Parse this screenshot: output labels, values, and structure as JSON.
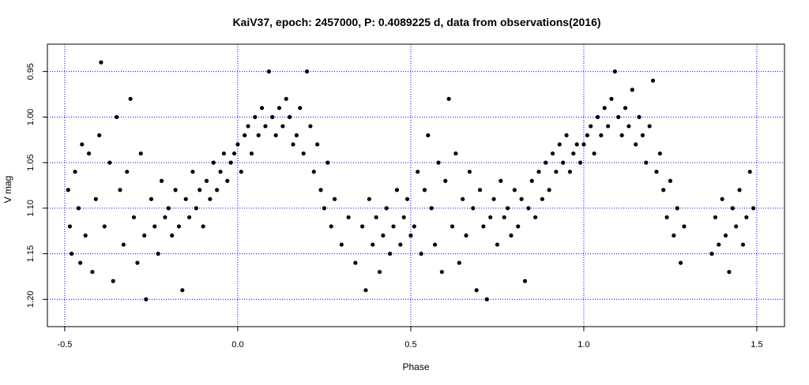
{
  "chart_data": {
    "type": "scatter",
    "title": "KaiV37, epoch: 2457000, P: 0.4089225 d, data from observations(2016)",
    "xlabel": "Phase",
    "ylabel": "V mag",
    "xlim": [
      -0.55,
      1.58
    ],
    "ylim": [
      1.23,
      0.92
    ],
    "y_axis_inverted": true,
    "x_ticks": [
      "-0.5",
      "0.0",
      "0.5",
      "1.0",
      "1.5"
    ],
    "y_ticks": [
      "0.95",
      "1.00",
      "1.05",
      "1.10",
      "1.15",
      "1.20"
    ],
    "grid": "dotted blue at tick positions",
    "point_color": "#000000",
    "grid_color": "#0000ff",
    "phase_repeat_note_shown": false,
    "points": [
      [
        -0.49,
        1.08
      ],
      [
        -0.485,
        1.12
      ],
      [
        -0.48,
        1.15
      ],
      [
        -0.47,
        1.06
      ],
      [
        -0.46,
        1.1
      ],
      [
        -0.455,
        1.16
      ],
      [
        -0.45,
        1.03
      ],
      [
        -0.44,
        1.13
      ],
      [
        -0.43,
        1.04
      ],
      [
        -0.42,
        1.17
      ],
      [
        -0.41,
        1.09
      ],
      [
        -0.4,
        1.02
      ],
      [
        -0.395,
        0.94
      ],
      [
        -0.385,
        1.12
      ],
      [
        -0.37,
        1.05
      ],
      [
        -0.36,
        1.18
      ],
      [
        -0.35,
        1.0
      ],
      [
        -0.34,
        1.08
      ],
      [
        -0.33,
        1.14
      ],
      [
        -0.32,
        1.06
      ],
      [
        -0.31,
        0.98
      ],
      [
        -0.3,
        1.11
      ],
      [
        -0.29,
        1.16
      ],
      [
        -0.28,
        1.04
      ],
      [
        -0.27,
        1.13
      ],
      [
        -0.265,
        1.2
      ],
      [
        -0.25,
        1.09
      ],
      [
        -0.24,
        1.12
      ],
      [
        -0.23,
        1.15
      ],
      [
        -0.22,
        1.07
      ],
      [
        -0.21,
        1.11
      ],
      [
        -0.2,
        1.1
      ],
      [
        -0.19,
        1.13
      ],
      [
        -0.18,
        1.08
      ],
      [
        -0.17,
        1.12
      ],
      [
        -0.16,
        1.19
      ],
      [
        -0.15,
        1.09
      ],
      [
        -0.14,
        1.11
      ],
      [
        -0.13,
        1.06
      ],
      [
        -0.12,
        1.1
      ],
      [
        -0.11,
        1.08
      ],
      [
        -0.1,
        1.12
      ],
      [
        -0.09,
        1.07
      ],
      [
        -0.08,
        1.09
      ],
      [
        -0.07,
        1.05
      ],
      [
        -0.06,
        1.08
      ],
      [
        -0.05,
        1.06
      ],
      [
        -0.04,
        1.04
      ],
      [
        -0.03,
        1.07
      ],
      [
        -0.02,
        1.05
      ],
      [
        -0.01,
        1.04
      ],
      [
        0.0,
        1.03
      ],
      [
        0.01,
        1.06
      ],
      [
        0.02,
        1.02
      ],
      [
        0.03,
        1.01
      ],
      [
        0.04,
        1.04
      ],
      [
        0.05,
        1.0
      ],
      [
        0.06,
        1.02
      ],
      [
        0.07,
        0.99
      ],
      [
        0.08,
        1.01
      ],
      [
        0.09,
        0.95
      ],
      [
        0.1,
        1.0
      ],
      [
        0.11,
        1.02
      ],
      [
        0.12,
        0.99
      ],
      [
        0.13,
        1.01
      ],
      [
        0.14,
        0.98
      ],
      [
        0.15,
        1.0
      ],
      [
        0.16,
        1.03
      ],
      [
        0.17,
        1.02
      ],
      [
        0.18,
        0.99
      ],
      [
        0.19,
        1.04
      ],
      [
        0.2,
        0.95
      ],
      [
        0.21,
        1.01
      ],
      [
        0.22,
        1.06
      ],
      [
        0.23,
        1.03
      ],
      [
        0.24,
        1.08
      ],
      [
        0.25,
        1.1
      ],
      [
        0.26,
        1.05
      ],
      [
        0.27,
        1.12
      ],
      [
        0.28,
        1.09
      ],
      [
        0.3,
        1.14
      ],
      [
        0.32,
        1.11
      ],
      [
        0.34,
        1.16
      ],
      [
        0.36,
        1.12
      ],
      [
        0.37,
        1.19
      ],
      [
        0.38,
        1.09
      ],
      [
        0.39,
        1.14
      ],
      [
        0.4,
        1.11
      ],
      [
        0.41,
        1.17
      ],
      [
        0.42,
        1.13
      ],
      [
        0.43,
        1.1
      ],
      [
        0.44,
        1.15
      ],
      [
        0.45,
        1.12
      ],
      [
        0.46,
        1.08
      ],
      [
        0.47,
        1.14
      ],
      [
        0.48,
        1.11
      ],
      [
        0.49,
        1.09
      ],
      [
        0.5,
        1.13
      ],
      [
        0.51,
        1.12
      ],
      [
        0.52,
        1.06
      ],
      [
        0.53,
        1.15
      ],
      [
        0.54,
        1.08
      ],
      [
        0.55,
        1.02
      ],
      [
        0.56,
        1.1
      ],
      [
        0.57,
        1.14
      ],
      [
        0.58,
        1.05
      ],
      [
        0.59,
        1.17
      ],
      [
        0.6,
        1.07
      ],
      [
        0.61,
        0.98
      ],
      [
        0.62,
        1.12
      ],
      [
        0.63,
        1.04
      ],
      [
        0.64,
        1.16
      ],
      [
        0.65,
        1.09
      ],
      [
        0.66,
        1.13
      ],
      [
        0.67,
        1.06
      ],
      [
        0.68,
        1.1
      ],
      [
        0.69,
        1.19
      ],
      [
        0.7,
        1.08
      ],
      [
        0.71,
        1.12
      ],
      [
        0.72,
        1.2
      ],
      [
        0.73,
        1.11
      ],
      [
        0.74,
        1.09
      ],
      [
        0.75,
        1.14
      ],
      [
        0.76,
        1.07
      ],
      [
        0.77,
        1.11
      ],
      [
        0.78,
        1.1
      ],
      [
        0.79,
        1.13
      ],
      [
        0.8,
        1.08
      ],
      [
        0.81,
        1.12
      ],
      [
        0.82,
        1.09
      ],
      [
        0.83,
        1.18
      ],
      [
        0.84,
        1.1
      ],
      [
        0.85,
        1.07
      ],
      [
        0.86,
        1.11
      ],
      [
        0.87,
        1.06
      ],
      [
        0.88,
        1.09
      ],
      [
        0.89,
        1.05
      ],
      [
        0.9,
        1.08
      ],
      [
        0.91,
        1.04
      ],
      [
        0.92,
        1.06
      ],
      [
        0.93,
        1.03
      ],
      [
        0.94,
        1.05
      ],
      [
        0.95,
        1.02
      ],
      [
        0.96,
        1.06
      ],
      [
        0.97,
        1.04
      ],
      [
        0.98,
        1.03
      ],
      [
        0.99,
        1.05
      ],
      [
        1.0,
        1.03
      ],
      [
        1.01,
        1.02
      ],
      [
        1.02,
        1.01
      ],
      [
        1.03,
        1.04
      ],
      [
        1.04,
        1.0
      ],
      [
        1.05,
        1.02
      ],
      [
        1.06,
        0.99
      ],
      [
        1.07,
        1.01
      ],
      [
        1.08,
        0.98
      ],
      [
        1.09,
        0.95
      ],
      [
        1.1,
        1.0
      ],
      [
        1.11,
        1.02
      ],
      [
        1.12,
        0.99
      ],
      [
        1.13,
        1.01
      ],
      [
        1.14,
        0.97
      ],
      [
        1.15,
        1.03
      ],
      [
        1.16,
        1.0
      ],
      [
        1.17,
        1.02
      ],
      [
        1.18,
        1.05
      ],
      [
        1.19,
        1.01
      ],
      [
        1.2,
        0.96
      ],
      [
        1.21,
        1.06
      ],
      [
        1.22,
        1.04
      ],
      [
        1.23,
        1.08
      ],
      [
        1.24,
        1.11
      ],
      [
        1.25,
        1.07
      ],
      [
        1.26,
        1.13
      ],
      [
        1.27,
        1.1
      ],
      [
        1.28,
        1.16
      ],
      [
        1.29,
        1.12
      ],
      [
        1.37,
        1.15
      ],
      [
        1.38,
        1.11
      ],
      [
        1.39,
        1.14
      ],
      [
        1.4,
        1.09
      ],
      [
        1.41,
        1.13
      ],
      [
        1.42,
        1.17
      ],
      [
        1.43,
        1.1
      ],
      [
        1.44,
        1.12
      ],
      [
        1.45,
        1.08
      ],
      [
        1.46,
        1.14
      ],
      [
        1.47,
        1.11
      ],
      [
        1.48,
        1.06
      ],
      [
        1.49,
        1.1
      ]
    ]
  }
}
